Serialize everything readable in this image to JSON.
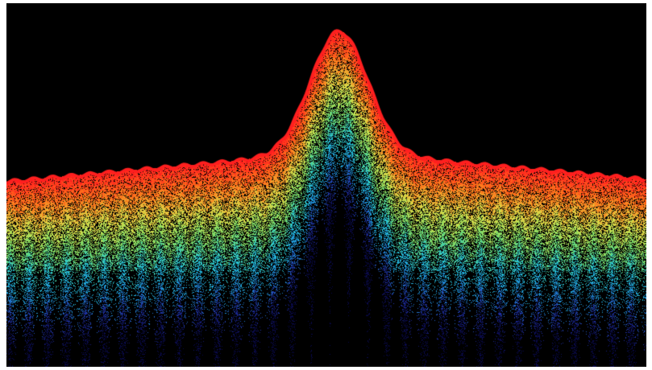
{
  "image": {
    "subject": "spectral-density-plot",
    "background_color": "#000000",
    "frame_color": "#ffffff",
    "colormap": [
      "#0a0a4a",
      "#2233aa",
      "#1f8fd6",
      "#27c8d8",
      "#6fd96a",
      "#d8e14a",
      "#ff7a1a",
      "#ff1f1f"
    ],
    "peak_color": "#ff1f1f",
    "lobe_count": 34,
    "peak_position_fraction": 0.52
  }
}
